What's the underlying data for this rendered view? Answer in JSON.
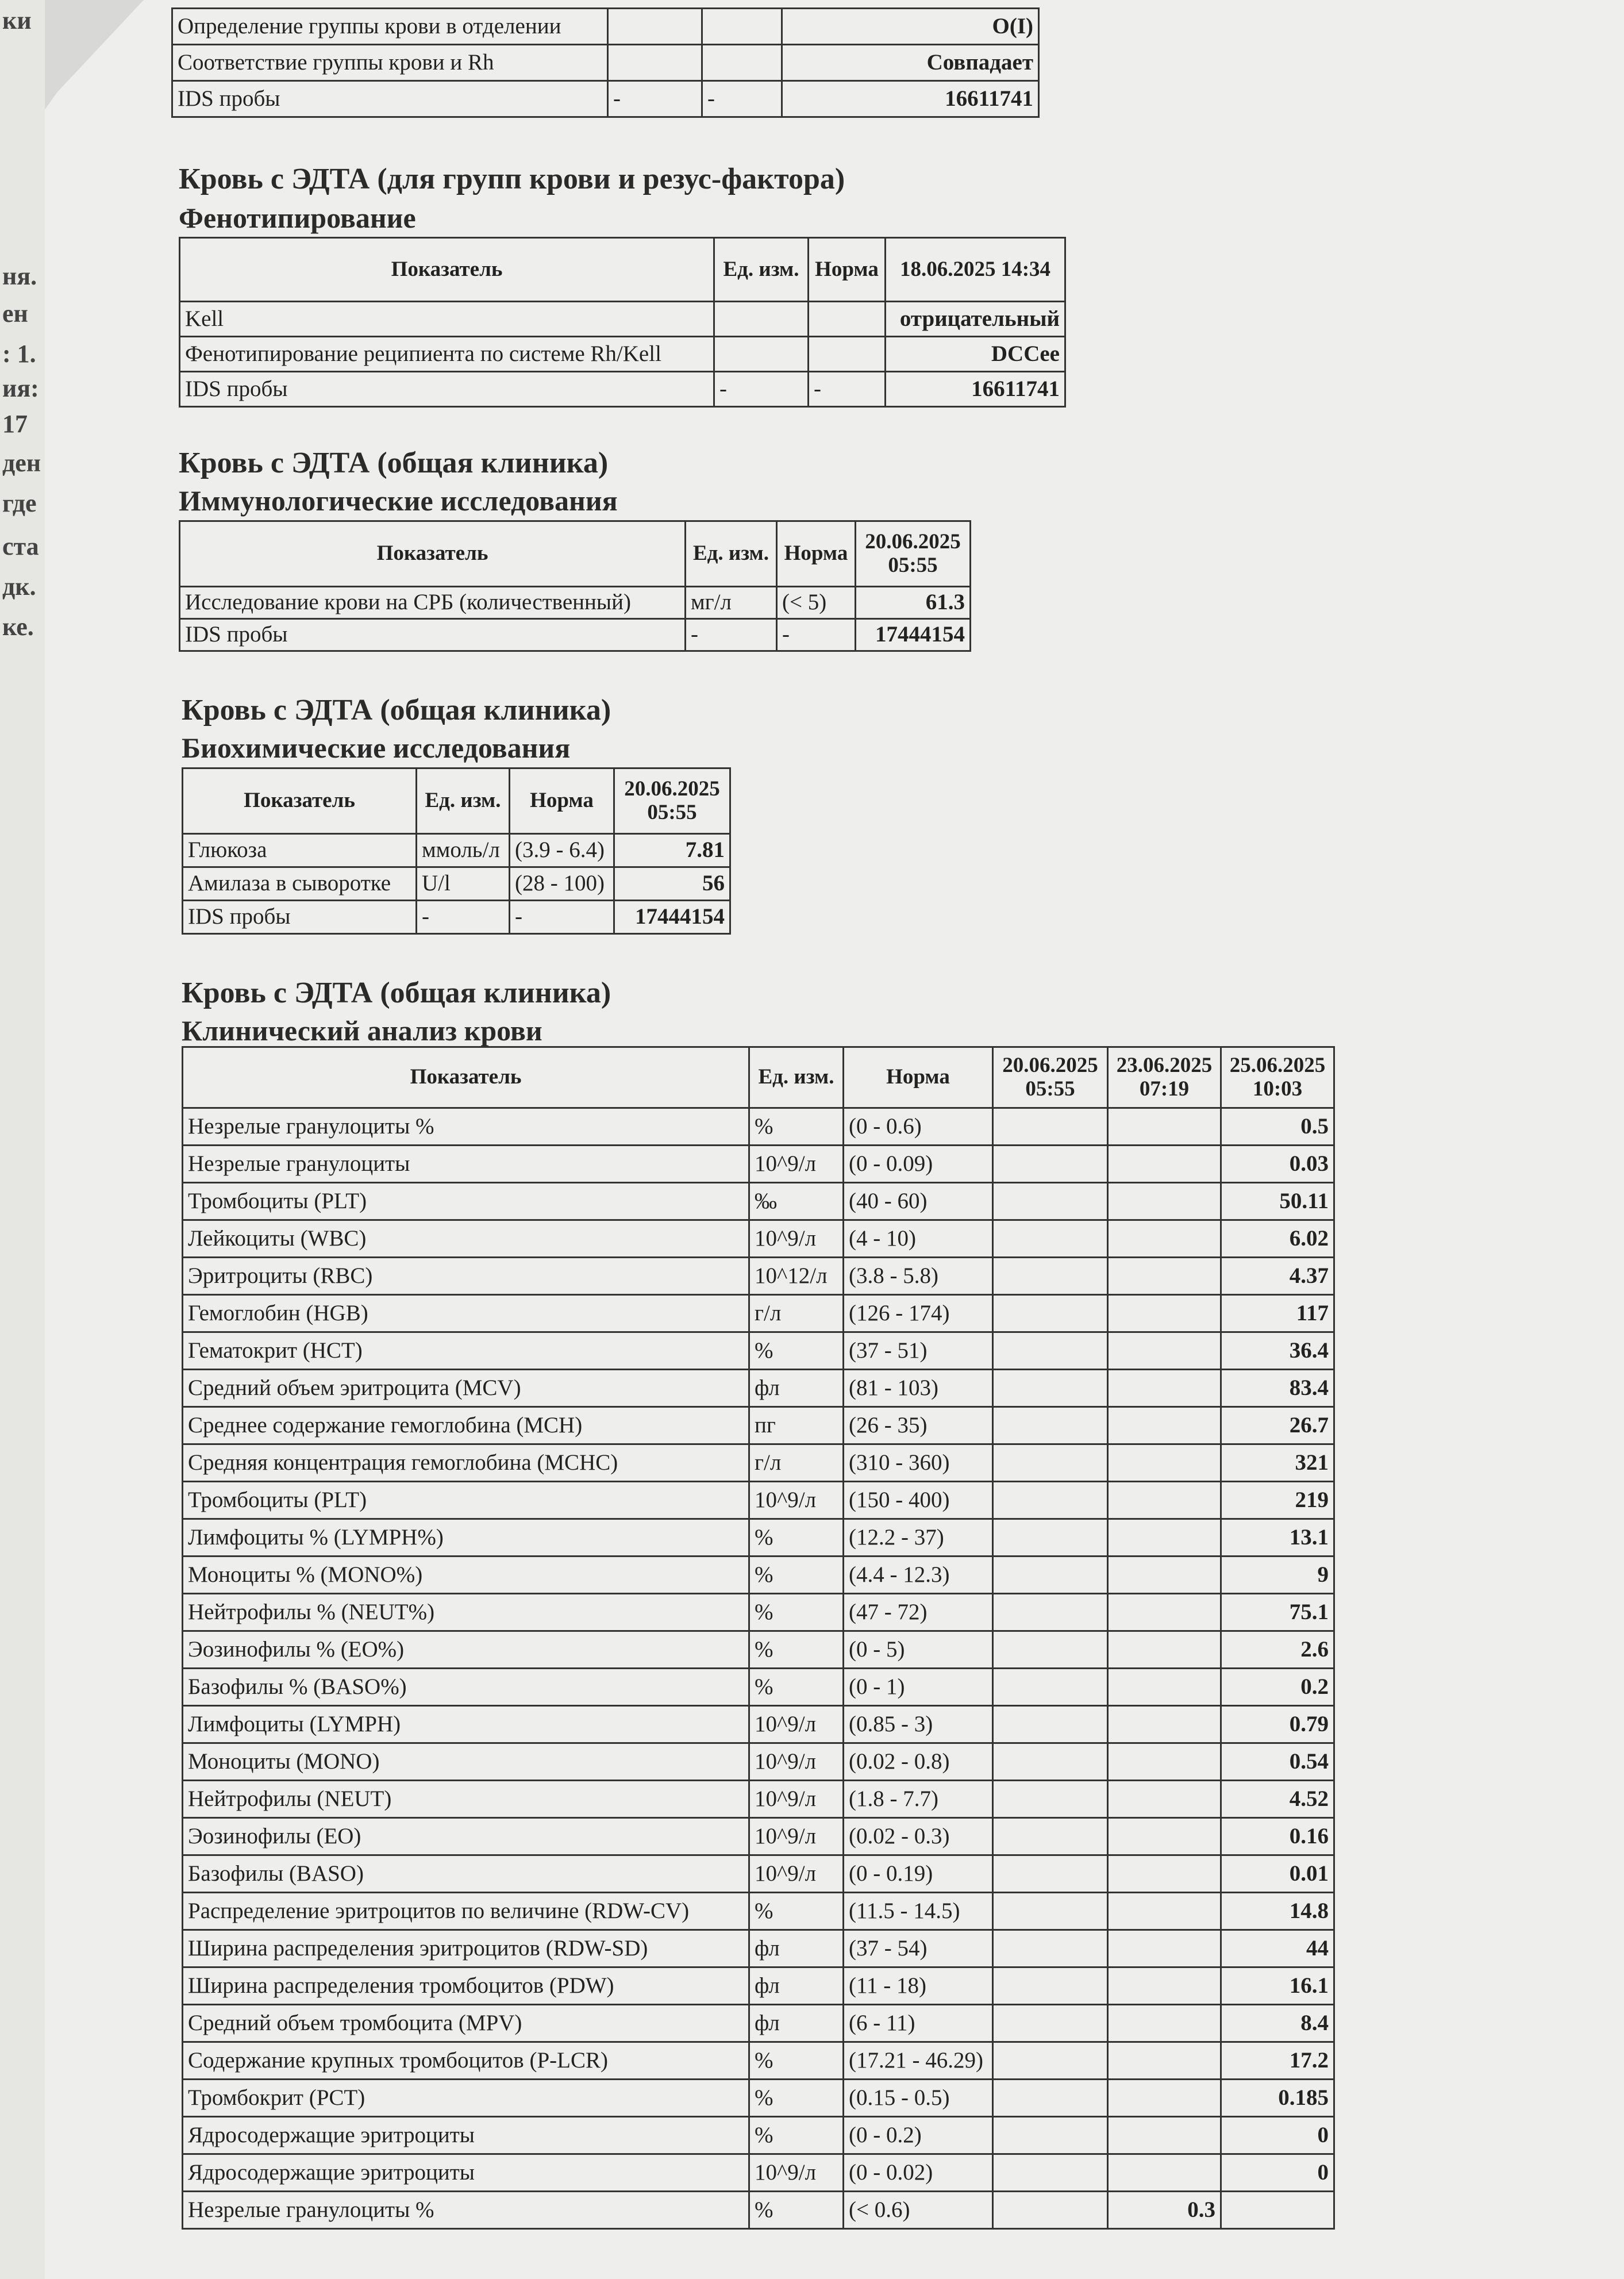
{
  "page_fragments": [
    "ки",
    "ня.",
    "ен",
    ": 1.",
    "ия:",
    "17",
    "ден",
    "где",
    "ста",
    "дк.",
    "ке."
  ],
  "tables": [
    {
      "rows": [
        [
          "Определение группы крови в отделении",
          null,
          null,
          "O(I)"
        ],
        [
          "Соответствие группы крови и Rh",
          null,
          null,
          "Совпадает"
        ],
        [
          "IDS пробы",
          "-",
          "-",
          "16611741"
        ]
      ]
    },
    {
      "heading": "Кровь с ЭДТА (для групп крови и резус-фактора)",
      "subheading": "Фенотипирование",
      "columns": [
        "Показатель",
        "Ед. изм.",
        "Норма",
        "18.06.2025 14:34"
      ],
      "rows": [
        [
          "Kell",
          null,
          null,
          "отрицательный"
        ],
        [
          "Фенотипирование реципиента по системе Rh/Kell",
          null,
          null,
          "DCCee"
        ],
        [
          "IDS пробы",
          "-",
          "-",
          "16611741"
        ]
      ]
    },
    {
      "heading": "Кровь с ЭДТА (общая клиника)",
      "subheading": "Иммунологические исследования",
      "columns": [
        "Показатель",
        "Ед. изм.",
        "Норма",
        "20.06.2025 05:55"
      ],
      "rows": [
        [
          "Исследование крови на СРБ (количественный)",
          "мг/л",
          "(< 5)",
          "61.3"
        ],
        [
          "IDS пробы",
          "-",
          "-",
          "17444154"
        ]
      ]
    },
    {
      "heading": "Кровь с ЭДТА (общая клиника)",
      "subheading": "Биохимические исследования",
      "columns": [
        "Показатель",
        "Ед. изм.",
        "Норма",
        "20.06.2025 05:55"
      ],
      "rows": [
        [
          "Глюкоза",
          "ммоль/л",
          "(3.9 - 6.4)",
          "7.81"
        ],
        [
          "Амилаза в сыворотке",
          "U/l",
          "(28 - 100)",
          "56"
        ],
        [
          "IDS пробы",
          "-",
          "-",
          "17444154"
        ]
      ]
    },
    {
      "heading": "Кровь с ЭДТА (общая клиника)",
      "subheading": "Клинический анализ крови",
      "columns": [
        "Показатель",
        "Ед. изм.",
        "Норма",
        "20.06.2025 05:55",
        "23.06.2025 07:19",
        "25.06.2025 10:03"
      ],
      "rows": [
        [
          "Незрелые гранулоциты %",
          "%",
          "(0 - 0.6)",
          null,
          null,
          "0.5"
        ],
        [
          "Незрелые гранулоциты",
          "10^9/л",
          "(0 - 0.09)",
          null,
          null,
          "0.03"
        ],
        [
          "Тромбоциты (PLT)",
          "‰",
          "(40 - 60)",
          null,
          null,
          "50.11"
        ],
        [
          "Лейкоциты (WBC)",
          "10^9/л",
          "(4 - 10)",
          null,
          null,
          "6.02"
        ],
        [
          "Эритроциты (RBC)",
          "10^12/л",
          "(3.8 - 5.8)",
          null,
          null,
          "4.37"
        ],
        [
          "Гемоглобин (HGB)",
          "г/л",
          "(126 - 174)",
          null,
          null,
          "117"
        ],
        [
          "Гематокрит (HCT)",
          "%",
          "(37 - 51)",
          null,
          null,
          "36.4"
        ],
        [
          "Средний объем эритроцита (MCV)",
          "фл",
          "(81 - 103)",
          null,
          null,
          "83.4"
        ],
        [
          "Среднее содержание гемоглобина (MCH)",
          "пг",
          "(26 - 35)",
          null,
          null,
          "26.7"
        ],
        [
          "Средняя концентрация гемоглобина (MCHC)",
          "г/л",
          "(310 - 360)",
          null,
          null,
          "321"
        ],
        [
          "Тромбоциты (PLT)",
          "10^9/л",
          "(150 - 400)",
          null,
          null,
          "219"
        ],
        [
          "Лимфоциты % (LYMPH%)",
          "%",
          "(12.2 - 37)",
          null,
          null,
          "13.1"
        ],
        [
          "Моноциты % (MONO%)",
          "%",
          "(4.4 - 12.3)",
          null,
          null,
          "9"
        ],
        [
          "Нейтрофилы % (NEUT%)",
          "%",
          "(47 - 72)",
          null,
          null,
          "75.1"
        ],
        [
          "Эозинофилы % (EO%)",
          "%",
          "(0 - 5)",
          null,
          null,
          "2.6"
        ],
        [
          "Базофилы % (BASO%)",
          "%",
          "(0 - 1)",
          null,
          null,
          "0.2"
        ],
        [
          "Лимфоциты (LYMPH)",
          "10^9/л",
          "(0.85 - 3)",
          null,
          null,
          "0.79"
        ],
        [
          "Моноциты (MONO)",
          "10^9/л",
          "(0.02 - 0.8)",
          null,
          null,
          "0.54"
        ],
        [
          "Нейтрофилы (NEUT)",
          "10^9/л",
          "(1.8 - 7.7)",
          null,
          null,
          "4.52"
        ],
        [
          "Эозинофилы (EO)",
          "10^9/л",
          "(0.02 - 0.3)",
          null,
          null,
          "0.16"
        ],
        [
          "Базофилы (BASO)",
          "10^9/л",
          "(0 - 0.19)",
          null,
          null,
          "0.01"
        ],
        [
          "Распределение эритроцитов по величине (RDW-CV)",
          "%",
          "(11.5 - 14.5)",
          null,
          null,
          "14.8"
        ],
        [
          "Ширина распределения эритроцитов (RDW-SD)",
          "фл",
          "(37 - 54)",
          null,
          null,
          "44"
        ],
        [
          "Ширина распределения тромбоцитов (PDW)",
          "фл",
          "(11 - 18)",
          null,
          null,
          "16.1"
        ],
        [
          "Средний объем тромбоцита (MPV)",
          "фл",
          "(6 - 11)",
          null,
          null,
          "8.4"
        ],
        [
          "Содержание крупных тромбоцитов (P-LCR)",
          "%",
          "(17.21 - 46.29)",
          null,
          null,
          "17.2"
        ],
        [
          "Тромбокрит (PCT)",
          "%",
          "(0.15 - 0.5)",
          null,
          null,
          "0.185"
        ],
        [
          "Ядросодержащие эритроциты",
          "%",
          "(0 - 0.2)",
          null,
          null,
          "0"
        ],
        [
          "Ядросодержащие эритроциты",
          "10^9/л",
          "(0 - 0.02)",
          null,
          null,
          "0"
        ],
        [
          "Незрелые гранулоциты %",
          "%",
          "(< 0.6)",
          null,
          "0.3",
          null
        ]
      ]
    }
  ]
}
